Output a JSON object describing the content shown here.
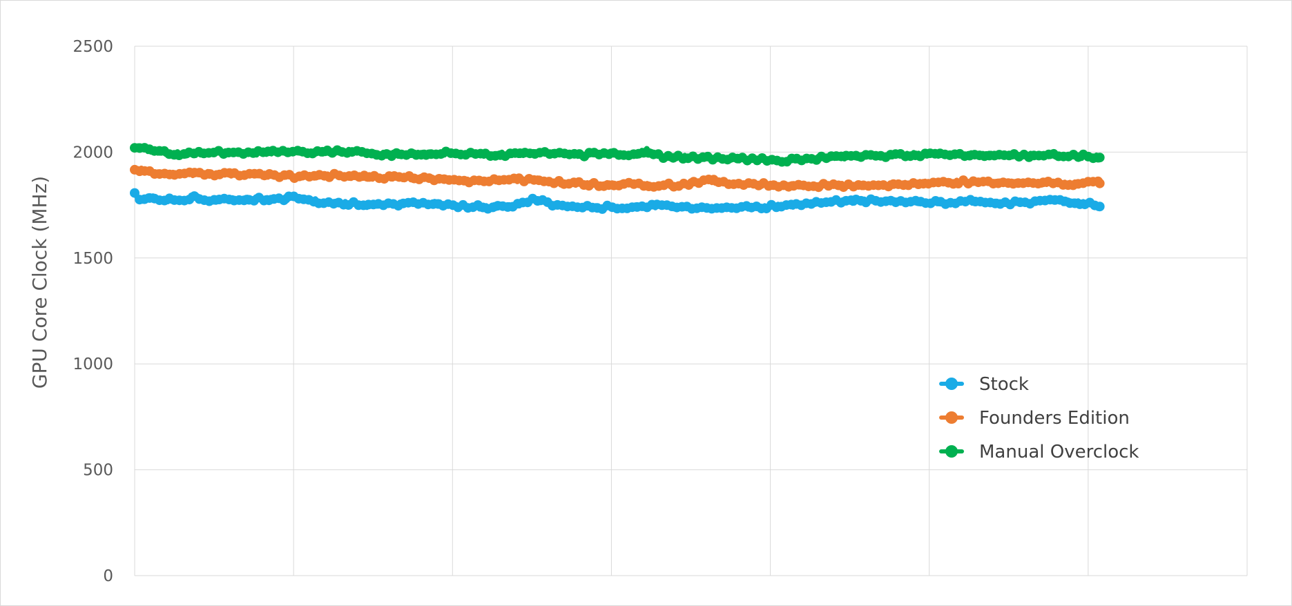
{
  "chart_data": {
    "type": "line",
    "title": "",
    "xlabel": "",
    "ylabel": "GPU Core Clock (MHz)",
    "ylim": [
      0,
      2500
    ],
    "yticks": [
      "0",
      "500",
      "1000",
      "1500",
      "2000",
      "2500"
    ],
    "x_points": 300,
    "x_gridlines": 7,
    "grid": true,
    "legend_position": "right-middle",
    "series": [
      {
        "name": "Stock",
        "color": "#1AABE6",
        "keyframes": [
          [
            0,
            1800
          ],
          [
            4,
            1770
          ],
          [
            8,
            1790
          ],
          [
            16,
            1775
          ],
          [
            28,
            1775
          ],
          [
            36,
            1790
          ],
          [
            44,
            1770
          ],
          [
            58,
            1775
          ],
          [
            76,
            1780
          ],
          [
            86,
            1775
          ],
          [
            100,
            1790
          ],
          [
            114,
            1760
          ],
          [
            128,
            1760
          ],
          [
            142,
            1745
          ],
          [
            158,
            1755
          ],
          [
            178,
            1760
          ],
          [
            196,
            1745
          ],
          [
            212,
            1740
          ],
          [
            232,
            1750
          ],
          [
            240,
            1780
          ],
          [
            254,
            1750
          ],
          [
            272,
            1740
          ],
          [
            296,
            1740
          ],
          [
            314,
            1745
          ],
          [
            334,
            1740
          ],
          [
            370,
            1740
          ],
          [
            392,
            1745
          ],
          [
            416,
            1765
          ],
          [
            448,
            1770
          ],
          [
            470,
            1765
          ],
          [
            490,
            1760
          ],
          [
            510,
            1770
          ],
          [
            530,
            1760
          ],
          [
            550,
            1770
          ],
          [
            575,
            1760
          ],
          [
            582,
            1740
          ]
        ]
      },
      {
        "name": "Founders Edition",
        "color": "#ED7D31",
        "keyframes": [
          [
            0,
            1920
          ],
          [
            8,
            1910
          ],
          [
            20,
            1895
          ],
          [
            40,
            1900
          ],
          [
            60,
            1895
          ],
          [
            80,
            1890
          ],
          [
            100,
            1885
          ],
          [
            120,
            1890
          ],
          [
            140,
            1880
          ],
          [
            160,
            1880
          ],
          [
            180,
            1875
          ],
          [
            200,
            1865
          ],
          [
            230,
            1870
          ],
          [
            240,
            1870
          ],
          [
            256,
            1855
          ],
          [
            280,
            1845
          ],
          [
            300,
            1850
          ],
          [
            316,
            1840
          ],
          [
            330,
            1850
          ],
          [
            344,
            1865
          ],
          [
            360,
            1850
          ],
          [
            380,
            1845
          ],
          [
            400,
            1840
          ],
          [
            420,
            1845
          ],
          [
            440,
            1840
          ],
          [
            460,
            1850
          ],
          [
            480,
            1855
          ],
          [
            500,
            1860
          ],
          [
            520,
            1855
          ],
          [
            540,
            1855
          ],
          [
            560,
            1850
          ],
          [
            580,
            1855
          ]
        ]
      },
      {
        "name": "Manual Overclock",
        "color": "#00B050",
        "keyframes": [
          [
            0,
            2025
          ],
          [
            6,
            2015
          ],
          [
            14,
            2000
          ],
          [
            30,
            1990
          ],
          [
            50,
            2000
          ],
          [
            70,
            1995
          ],
          [
            90,
            2000
          ],
          [
            110,
            2000
          ],
          [
            130,
            2005
          ],
          [
            150,
            1990
          ],
          [
            170,
            1990
          ],
          [
            190,
            1995
          ],
          [
            210,
            1990
          ],
          [
            230,
            1990
          ],
          [
            250,
            1995
          ],
          [
            270,
            1985
          ],
          [
            290,
            1995
          ],
          [
            306,
            1990
          ],
          [
            310,
            2010
          ],
          [
            322,
            1975
          ],
          [
            340,
            1975
          ],
          [
            360,
            1970
          ],
          [
            380,
            1965
          ],
          [
            394,
            1960
          ],
          [
            404,
            1965
          ],
          [
            420,
            1975
          ],
          [
            440,
            1980
          ],
          [
            460,
            1985
          ],
          [
            480,
            1990
          ],
          [
            500,
            1990
          ],
          [
            520,
            1985
          ],
          [
            540,
            1985
          ],
          [
            560,
            1985
          ],
          [
            575,
            1980
          ],
          [
            586,
            1980
          ]
        ]
      }
    ]
  }
}
